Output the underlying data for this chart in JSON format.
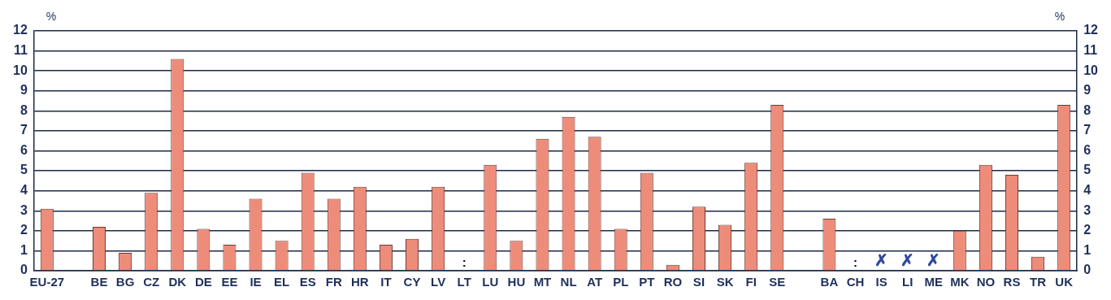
{
  "chart_data": {
    "type": "bar",
    "ylabel": "%",
    "y2label": "%",
    "categories": [
      "EU-27",
      null,
      "BE",
      "BG",
      "CZ",
      "DK",
      "DE",
      "EE",
      "IE",
      "EL",
      "ES",
      "FR",
      "HR",
      "IT",
      "CY",
      "LV",
      "LT",
      "LU",
      "HU",
      "MT",
      "NL",
      "AT",
      "PL",
      "PT",
      "RO",
      "SI",
      "SK",
      "FI",
      "SE",
      null,
      "BA",
      "CH",
      "IS",
      "LI",
      "ME",
      "MK",
      "NO",
      "RS",
      "TR",
      "UK"
    ],
    "values": [
      3.1,
      null,
      2.2,
      0.9,
      3.9,
      10.6,
      2.1,
      1.3,
      3.6,
      1.5,
      4.9,
      3.6,
      4.2,
      1.3,
      1.6,
      4.2,
      null,
      5.3,
      1.5,
      6.6,
      7.7,
      6.7,
      2.1,
      4.9,
      0.3,
      3.2,
      2.3,
      5.4,
      8.3,
      null,
      2.6,
      null,
      null,
      null,
      null,
      2.0,
      5.3,
      4.8,
      0.7,
      8.3
    ],
    "value_labels": [
      null,
      null,
      null,
      null,
      null,
      null,
      null,
      null,
      null,
      null,
      null,
      null,
      null,
      null,
      null,
      null,
      ":",
      null,
      null,
      null,
      null,
      null,
      null,
      null,
      null,
      null,
      null,
      null,
      null,
      null,
      null,
      ":",
      "✗",
      "✗",
      "✗",
      null,
      null,
      null,
      null,
      null
    ],
    "color": "#ee8c7a",
    "ylim": [
      0,
      12
    ],
    "yticks": [
      0,
      1,
      2,
      3,
      4,
      5,
      6,
      7,
      8,
      9,
      10,
      11,
      12
    ],
    "y2lim": [
      0,
      12
    ],
    "y2ticks": [
      0,
      1,
      2,
      3,
      4,
      5,
      6,
      7,
      8,
      9,
      10,
      11,
      12
    ],
    "grid": "y"
  }
}
